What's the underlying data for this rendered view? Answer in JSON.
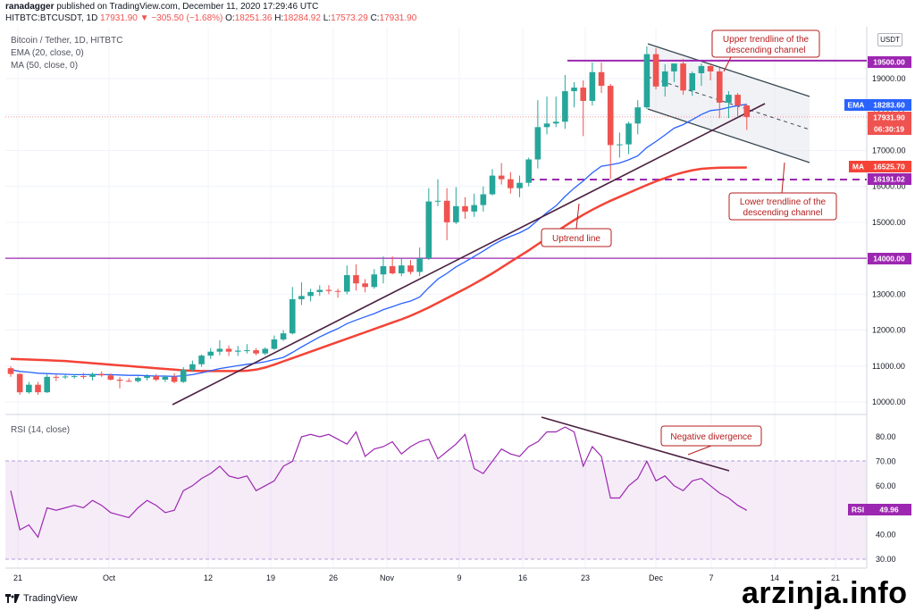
{
  "header": {
    "publisher": "ranadagger",
    "published_text": "published on TradingView.com, December 11, 2020 17:29:46 UTC",
    "symbol": "HITBTC:BTCUSDT, 1D",
    "last": "17931.90",
    "change": "−305.50 (−1.68%)",
    "open_label": "O:",
    "open": "18251.36",
    "high_label": "H:",
    "high": "18284.92",
    "low_label": "L:",
    "low": "17573.29",
    "close_label": "C:",
    "close": "17931.90"
  },
  "legend": {
    "title": "Bitcoin / Tether, 1D, HITBTC",
    "ema": "EMA (20, close, 0)",
    "ma": "MA (50, close, 0)",
    "rsi": "RSI (14, close)"
  },
  "currency_button": "USDT",
  "footer": {
    "brand": "TradingView"
  },
  "watermark": "arzinja.info",
  "colors": {
    "up": "#26a69a",
    "down": "#ef5350",
    "ema": "#2962ff",
    "ma": "#f44336",
    "purple": "#9c27b0",
    "trend": "#4a2040",
    "channel": "#37474f",
    "rsi": "#9c27b0"
  },
  "price_axis_labels": [
    "10000.00",
    "11000.00",
    "12000.00",
    "13000.00",
    "14000.00",
    "15000.00",
    "16000.00",
    "17000.00",
    "18000.00",
    "19000.00"
  ],
  "rsi_axis_labels": [
    "30.00",
    "40.00",
    "50.00",
    "60.00",
    "70.00",
    "80.00"
  ],
  "x_axis_labels": [
    "21",
    "Oct",
    "12",
    "19",
    "26",
    "Nov",
    "9",
    "16",
    "23",
    "Dec",
    "7",
    "14",
    "21"
  ],
  "tags": {
    "level_high": "19500.00",
    "ema": "EMA",
    "ema_value": "18283.60",
    "last": "17931.90",
    "countdown": "06:30:19",
    "ma": "MA",
    "ma_value": "16525.70",
    "level_mid": "16191.02",
    "level_low": "14000.00",
    "rsi": "RSI",
    "rsi_value": "49.96"
  },
  "annotations": {
    "upper": [
      "Upper trendline of the",
      "descending channel"
    ],
    "lower": [
      "Lower trendline of the",
      "descending channel"
    ],
    "uptrend": "Uptrend line",
    "divergence": "Negative divergence"
  },
  "chart_data": {
    "type": "candlestick",
    "title": "Bitcoin / Tether, 1D, HITBTC",
    "candles": [
      [
        10940,
        10990,
        10700,
        10780
      ],
      [
        10780,
        10800,
        10200,
        10270
      ],
      [
        10270,
        10560,
        10230,
        10480
      ],
      [
        10480,
        10560,
        10200,
        10270
      ],
      [
        10270,
        10770,
        10250,
        10700
      ],
      [
        10700,
        10760,
        10580,
        10690
      ],
      [
        10690,
        10760,
        10640,
        10710
      ],
      [
        10710,
        10770,
        10650,
        10720
      ],
      [
        10720,
        10810,
        10640,
        10700
      ],
      [
        10700,
        10820,
        10600,
        10780
      ],
      [
        10780,
        10850,
        10700,
        10740
      ],
      [
        10740,
        10790,
        10600,
        10620
      ],
      [
        10620,
        10700,
        10380,
        10590
      ],
      [
        10590,
        10660,
        10560,
        10580
      ],
      [
        10580,
        10710,
        10540,
        10670
      ],
      [
        10670,
        10770,
        10600,
        10720
      ],
      [
        10720,
        10780,
        10580,
        10620
      ],
      [
        10620,
        10740,
        10560,
        10700
      ],
      [
        10700,
        10800,
        10520,
        10560
      ],
      [
        10560,
        10970,
        10530,
        10900
      ],
      [
        10900,
        11150,
        10850,
        11050
      ],
      [
        11050,
        11320,
        10980,
        11290
      ],
      [
        11290,
        11500,
        11200,
        11400
      ],
      [
        11400,
        11720,
        11300,
        11480
      ],
      [
        11480,
        11570,
        11280,
        11400
      ],
      [
        11400,
        11560,
        11280,
        11430
      ],
      [
        11430,
        11610,
        11350,
        11440
      ],
      [
        11440,
        11500,
        11300,
        11350
      ],
      [
        11350,
        11520,
        11300,
        11480
      ],
      [
        11480,
        11850,
        11450,
        11740
      ],
      [
        11740,
        12000,
        11700,
        11910
      ],
      [
        11910,
        13200,
        11880,
        12860
      ],
      [
        12860,
        13330,
        12700,
        12950
      ],
      [
        12950,
        13150,
        12800,
        13060
      ],
      [
        13060,
        13250,
        12950,
        13120
      ],
      [
        13120,
        13250,
        13000,
        13090
      ],
      [
        13090,
        13150,
        12900,
        13070
      ],
      [
        13070,
        13800,
        13000,
        13530
      ],
      [
        13530,
        13830,
        13100,
        13300
      ],
      [
        13300,
        13420,
        13050,
        13200
      ],
      [
        13200,
        13700,
        13150,
        13550
      ],
      [
        13550,
        14050,
        13300,
        13780
      ],
      [
        13780,
        14050,
        13550,
        13580
      ],
      [
        13580,
        14000,
        13500,
        13800
      ],
      [
        13800,
        13950,
        13550,
        13620
      ],
      [
        13620,
        14300,
        13500,
        14000
      ],
      [
        14000,
        15950,
        13950,
        15580
      ],
      [
        15580,
        16200,
        15450,
        15600
      ],
      [
        15600,
        15950,
        14500,
        15000
      ],
      [
        15000,
        15980,
        14950,
        15450
      ],
      [
        15450,
        15700,
        15100,
        15300
      ],
      [
        15300,
        15800,
        15150,
        15480
      ],
      [
        15480,
        16000,
        15300,
        15780
      ],
      [
        15780,
        16480,
        15750,
        16300
      ],
      [
        16300,
        16650,
        16050,
        16200
      ],
      [
        16200,
        16400,
        15800,
        15950
      ],
      [
        15950,
        16300,
        15700,
        16100
      ],
      [
        16100,
        16800,
        16000,
        16750
      ],
      [
        16750,
        18400,
        16500,
        17650
      ],
      [
        17650,
        18500,
        17450,
        17750
      ],
      [
        17750,
        18500,
        17650,
        17800
      ],
      [
        17800,
        19100,
        17600,
        18650
      ],
      [
        18650,
        18900,
        18200,
        18750
      ],
      [
        18750,
        18950,
        17400,
        18380
      ],
      [
        18380,
        19450,
        18250,
        19180
      ],
      [
        19180,
        19450,
        18600,
        18800
      ],
      [
        18800,
        18850,
        16200,
        17150
      ],
      [
        17150,
        17500,
        16800,
        17170
      ],
      [
        17170,
        17800,
        16900,
        17750
      ],
      [
        17750,
        18400,
        17450,
        18200
      ],
      [
        18200,
        19900,
        18150,
        19680
      ],
      [
        19680,
        19850,
        18700,
        18780
      ],
      [
        18780,
        19400,
        18500,
        19200
      ],
      [
        19200,
        19400,
        18900,
        19420
      ],
      [
        19420,
        19550,
        18550,
        18670
      ],
      [
        18670,
        19200,
        18520,
        19150
      ],
      [
        19150,
        19420,
        18800,
        19350
      ],
      [
        19350,
        19400,
        18950,
        19200
      ],
      [
        19200,
        19300,
        17900,
        18330
      ],
      [
        18330,
        18650,
        17900,
        18550
      ],
      [
        18550,
        18600,
        17950,
        18250
      ],
      [
        18251.36,
        18284.92,
        17573.29,
        17931.9
      ]
    ],
    "ema": [
      10900,
      10850,
      10830,
      10800,
      10790,
      10780,
      10770,
      10760,
      10760,
      10760,
      10760,
      10760,
      10750,
      10740,
      10740,
      10730,
      10720,
      10720,
      10710,
      10730,
      10760,
      10810,
      10870,
      10930,
      10970,
      11010,
      11050,
      11080,
      11120,
      11180,
      11240,
      11380,
      11530,
      11670,
      11810,
      11930,
      12040,
      12180,
      12280,
      12370,
      12460,
      12570,
      12650,
      12740,
      12810,
      12920,
      13180,
      13420,
      13580,
      13760,
      13900,
      14050,
      14200,
      14360,
      14500,
      14610,
      14710,
      14840,
      15060,
      15270,
      15460,
      15720,
      15950,
      16150,
      16380,
      16560,
      16600,
      16650,
      16740,
      16850,
      17080,
      17250,
      17430,
      17620,
      17720,
      17860,
      18000,
      18110,
      18140,
      18200,
      18250,
      18283.6
    ],
    "ma": [
      11200,
      11190,
      11180,
      11170,
      11160,
      11150,
      11140,
      11120,
      11100,
      11080,
      11060,
      11040,
      11020,
      11000,
      10980,
      10960,
      10940,
      10920,
      10900,
      10880,
      10870,
      10860,
      10860,
      10860,
      10860,
      10860,
      10870,
      10900,
      10960,
      11040,
      11130,
      11220,
      11310,
      11400,
      11490,
      11580,
      11670,
      11760,
      11850,
      11940,
      12030,
      12120,
      12210,
      12300,
      12400,
      12510,
      12630,
      12760,
      12890,
      13020,
      13150,
      13290,
      13430,
      13580,
      13740,
      13900,
      14060,
      14220,
      14390,
      14560,
      14730,
      14900,
      15060,
      15210,
      15350,
      15480,
      15600,
      15710,
      15820,
      15930,
      16040,
      16140,
      16230,
      16320,
      16390,
      16450,
      16490,
      16510,
      16520,
      16523,
      16525,
      16525.7
    ],
    "rsi": [
      58,
      42,
      44,
      39,
      51,
      50,
      51,
      52,
      51,
      54,
      52,
      49,
      48,
      47,
      51,
      54,
      52,
      49,
      50,
      58,
      60,
      63,
      65,
      68,
      64,
      63,
      64,
      58,
      60,
      62,
      68,
      70,
      80,
      81,
      80,
      81,
      79,
      77,
      82,
      72,
      75,
      76,
      78,
      73,
      76,
      78,
      79,
      71,
      74,
      77,
      81,
      67,
      65,
      70,
      75,
      73,
      72,
      76,
      78,
      82,
      82,
      84,
      82,
      68,
      76,
      72,
      55,
      55,
      60,
      63,
      70,
      62,
      64,
      60,
      58,
      62,
      63,
      60,
      57,
      55,
      52,
      49.96
    ],
    "xlim": [
      "Sep 21",
      "Dec 21"
    ],
    "ylim": [
      9800,
      20200
    ],
    "rsi_ylim": [
      27,
      88
    ],
    "levels": [
      19500,
      16191.02,
      14000
    ]
  }
}
